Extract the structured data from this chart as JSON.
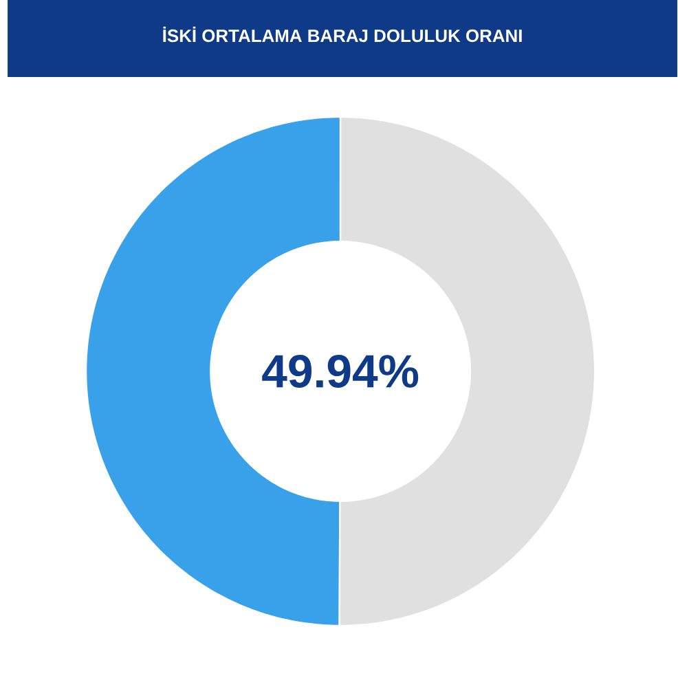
{
  "chart_data": {
    "type": "donut",
    "title": "İSKİ ORTALAMA BARAJ DOLULUK ORANI",
    "categories": [
      null,
      null
    ],
    "values": [
      49.94,
      50.06
    ],
    "colors": [
      "#38a1ea",
      "#e0e0e0"
    ],
    "annotations": [
      "49.94%"
    ]
  }
}
